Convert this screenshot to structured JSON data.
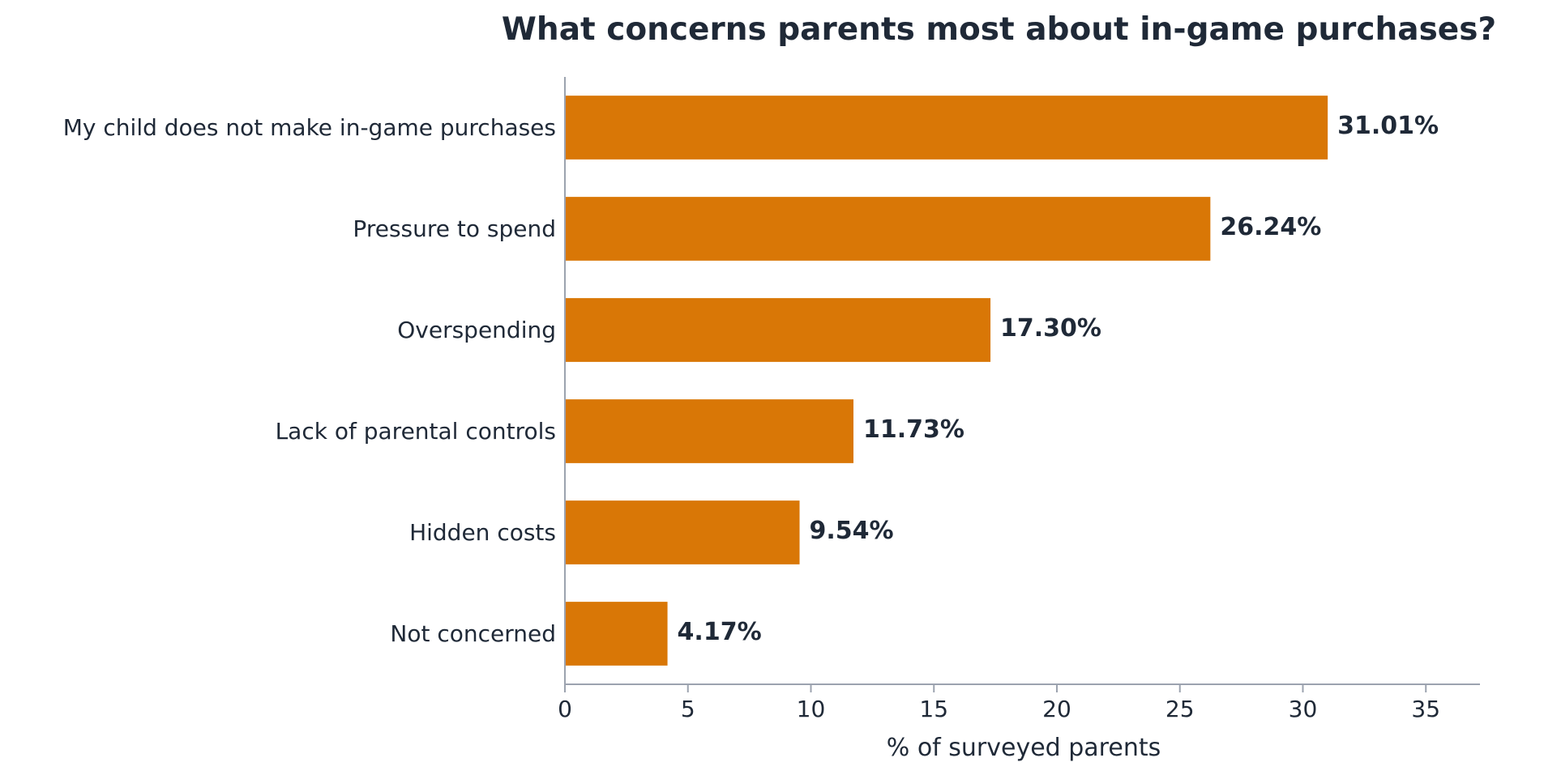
{
  "chart_data": {
    "type": "bar",
    "orientation": "horizontal",
    "title": "What concerns parents most about in-game purchases?",
    "xlabel": "% of surveyed parents",
    "ylabel": "",
    "xlim": [
      0,
      37.2
    ],
    "xticks": [
      0,
      5,
      10,
      15,
      20,
      25,
      30,
      35
    ],
    "categories": [
      "My child does not make in-game purchases",
      "Pressure to spend",
      "Overspending",
      "Lack of parental controls",
      "Hidden costs",
      "Not concerned"
    ],
    "values": [
      31.01,
      26.24,
      17.3,
      11.73,
      9.54,
      4.17
    ],
    "value_labels": [
      "31.01%",
      "26.24%",
      "17.30%",
      "11.73%",
      "9.54%",
      "4.17%"
    ],
    "bar_color": "#d97706",
    "text_color": "#1f2937",
    "axis_color": "#9ca3af",
    "grid": false,
    "legend": "none"
  }
}
